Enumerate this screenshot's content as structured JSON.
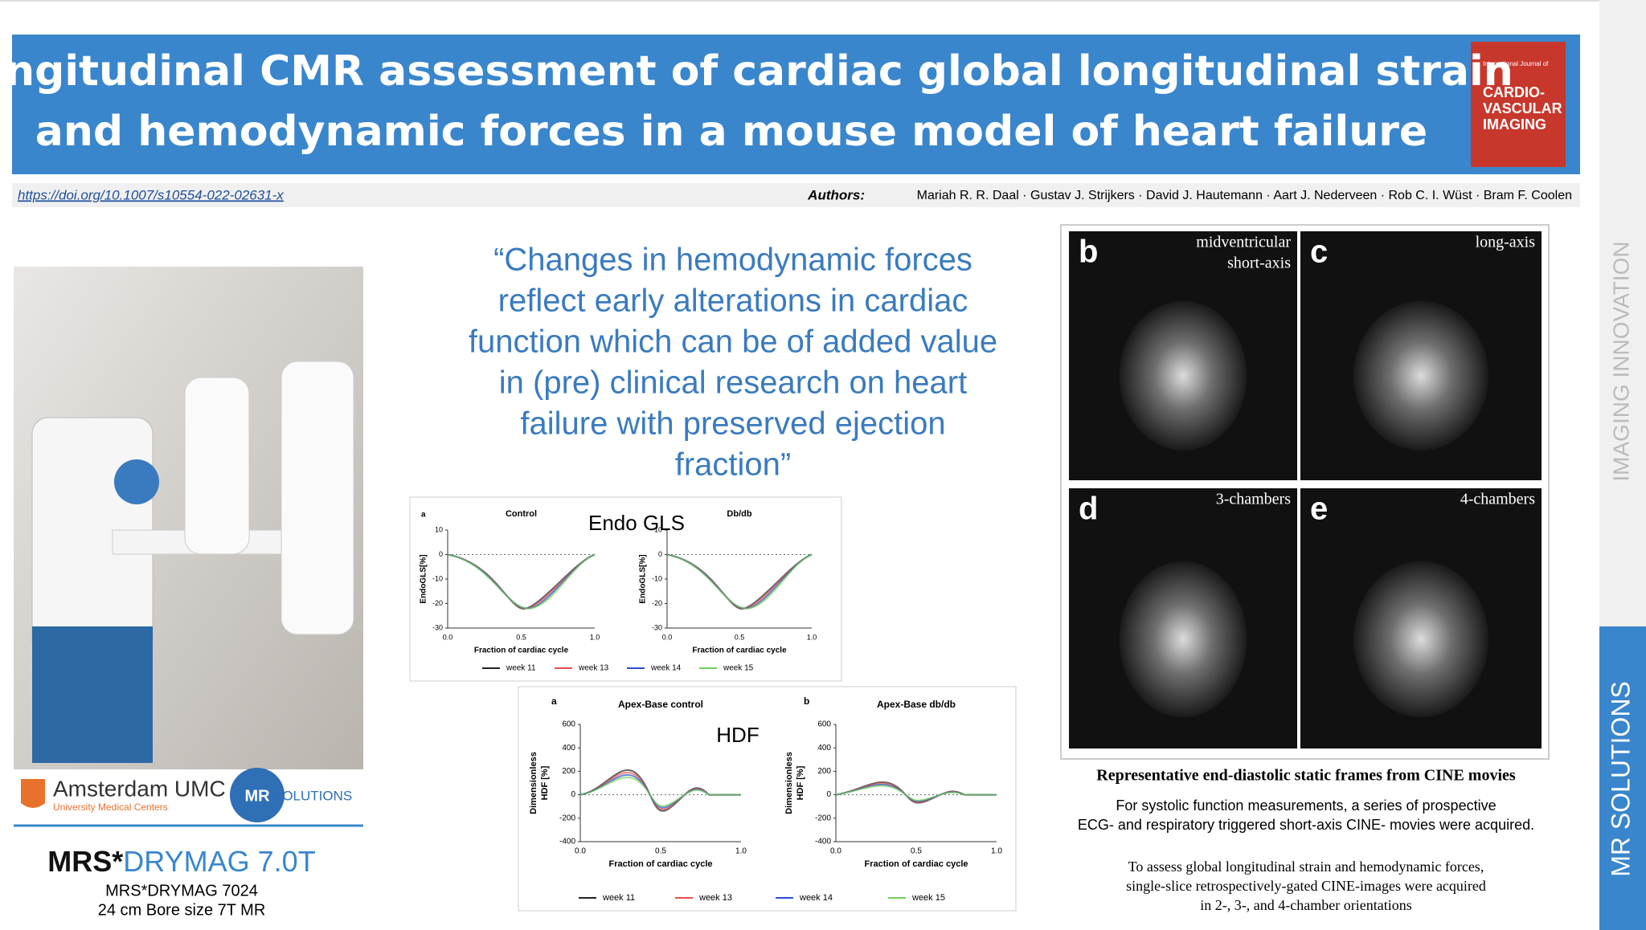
{
  "header": {
    "title_lines": [
      "Longitudinal CMR assessment of cardiac global longitudinal strain",
      "and hemodynamic forces in a mouse model of heart failure"
    ],
    "journal_cover": [
      "International Journal of",
      "CARDIO-",
      "VASCULAR",
      "IMAGING"
    ],
    "doi": "https://doi.org/10.1007/s10554-022-02631-x",
    "authors_label": "Authors:",
    "authors": "Mariah R. R. Daal · Gustav J. Strijkers · David J. Hautemann · Aart J. Nederveen · Rob C. I. Wüst · Bram F. Coolen"
  },
  "logos": {
    "amsterdam": "Amsterdam UMC",
    "amsterdam_sub": "University Medical Centers",
    "mr": "MR",
    "mr_sub": "SOLUTIONS"
  },
  "product": {
    "name_prefix": "MRS*",
    "name_suffix": "DRYMAG 7.0T",
    "lines": [
      "MRS*DRYMAG 7024",
      "24 cm Bore size 7T  MR"
    ]
  },
  "quote": [
    "“Changes in hemodynamic forces",
    "reflect early alterations in cardiac",
    "function which can be of added value",
    "in (pre) clinical research on heart",
    "failure with preserved ejection",
    "fraction”"
  ],
  "figure_gls": {
    "label": "Endo GLS",
    "letter": "a",
    "panels": [
      {
        "title": "Control"
      },
      {
        "title": "Db/db"
      }
    ],
    "ylabel": "EndoGLS[%]",
    "xlabel": "Fraction of cardiac cycle",
    "yticks": [
      10,
      0,
      -10,
      -20,
      -30
    ],
    "xticks": [
      "0.0",
      "0.5",
      "1.0"
    ],
    "legend": [
      "week 11",
      "week 13",
      "week 14",
      "week 15"
    ]
  },
  "figure_hdf": {
    "label": "HDF",
    "panels": [
      {
        "letter": "a",
        "title": "Apex-Base control"
      },
      {
        "letter": "b",
        "title": "Apex-Base db/db"
      }
    ],
    "ylabel": [
      "Dimensionless",
      "HDF [%]"
    ],
    "xlabel": "Fraction of cardiac cycle",
    "yticks": [
      600,
      400,
      200,
      0,
      -200,
      -400
    ],
    "xticks": [
      "0.0",
      "0.5",
      "1.0"
    ],
    "legend": [
      "week 11",
      "week 13",
      "week 14",
      "week 15"
    ]
  },
  "mri": {
    "panels": [
      {
        "letter": "b",
        "label": [
          "midventricular",
          "short-axis"
        ]
      },
      {
        "letter": "c",
        "label": [
          "long-axis"
        ]
      },
      {
        "letter": "d",
        "label": [
          "3-chambers"
        ]
      },
      {
        "letter": "e",
        "label": [
          "4-chambers"
        ]
      }
    ],
    "caption": "Representative end-diastolic static frames from CINE movies",
    "paragraphs": [
      [
        "For systolic function measurements, a series of prospective",
        "ECG- and respiratory triggered short-axis CINE- movies were acquired."
      ],
      [
        "To assess global longitudinal strain and hemodynamic forces,",
        "single-slice retrospectively-gated CINE-images were acquired",
        "in 2-, 3-, and 4-chamber orientations"
      ]
    ]
  },
  "side": {
    "top": "IMAGING INNOVATION",
    "bottom": "MR SOLUTIONS"
  }
}
